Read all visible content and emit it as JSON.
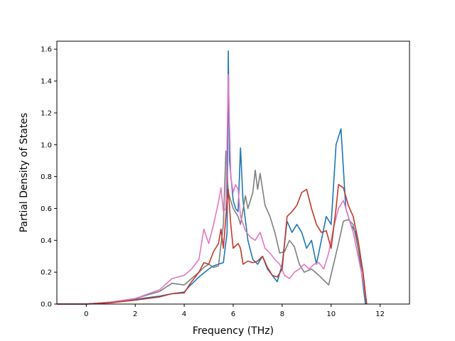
{
  "chart_data": {
    "type": "line",
    "title": "",
    "xlabel": "Frequency (THz)",
    "ylabel": "Partial Density of States",
    "xlim": [
      -1.2,
      13.2
    ],
    "ylim": [
      0.0,
      1.65
    ],
    "xticks": [
      0,
      2,
      4,
      6,
      8,
      10,
      12
    ],
    "xtick_labels": [
      "0",
      "2",
      "4",
      "6",
      "8",
      "10",
      "12"
    ],
    "yticks": [
      0.0,
      0.2,
      0.4,
      0.6,
      0.8,
      1.0,
      1.2,
      1.4,
      1.6
    ],
    "ytick_labels": [
      "0.0",
      "0.2",
      "0.4",
      "0.6",
      "0.8",
      "1.0",
      "1.2",
      "1.4",
      "1.6"
    ],
    "grid": false,
    "legend": false,
    "series": [
      {
        "color": "#1f77b4",
        "points": [
          [
            -1.2,
            0
          ],
          [
            0,
            0
          ],
          [
            1,
            0.012
          ],
          [
            2,
            0.03
          ],
          [
            3,
            0.05
          ],
          [
            3.5,
            0.065
          ],
          [
            4,
            0.075
          ],
          [
            4.2,
            0.11
          ],
          [
            4.6,
            0.17
          ],
          [
            5,
            0.22
          ],
          [
            5.2,
            0.24
          ],
          [
            5.4,
            0.25
          ],
          [
            5.6,
            0.26
          ],
          [
            5.75,
            0.45
          ],
          [
            5.8,
            1.59
          ],
          [
            5.85,
            0.9
          ],
          [
            6,
            0.65
          ],
          [
            6.1,
            0.6
          ],
          [
            6.2,
            0.58
          ],
          [
            6.3,
            0.98
          ],
          [
            6.4,
            0.65
          ],
          [
            6.6,
            0.4
          ],
          [
            6.8,
            0.28
          ],
          [
            7,
            0.25
          ],
          [
            7.2,
            0.3
          ],
          [
            7.4,
            0.22
          ],
          [
            7.6,
            0.18
          ],
          [
            7.8,
            0.14
          ],
          [
            8,
            0.25
          ],
          [
            8.2,
            0.52
          ],
          [
            8.4,
            0.45
          ],
          [
            8.6,
            0.5
          ],
          [
            8.8,
            0.45
          ],
          [
            9,
            0.35
          ],
          [
            9.2,
            0.4
          ],
          [
            9.4,
            0.25
          ],
          [
            9.6,
            0.4
          ],
          [
            9.8,
            0.55
          ],
          [
            10,
            0.5
          ],
          [
            10.2,
            1
          ],
          [
            10.4,
            1.1
          ],
          [
            10.6,
            0.6
          ],
          [
            10.8,
            0.5
          ],
          [
            11,
            0.45
          ],
          [
            11.2,
            0.25
          ],
          [
            11.4,
            0
          ]
        ]
      },
      {
        "color": "#7f7f7f",
        "points": [
          [
            -1.2,
            0
          ],
          [
            0,
            0
          ],
          [
            1,
            0.012
          ],
          [
            2,
            0.035
          ],
          [
            3,
            0.08
          ],
          [
            3.5,
            0.13
          ],
          [
            4,
            0.12
          ],
          [
            4.3,
            0.16
          ],
          [
            4.6,
            0.2
          ],
          [
            4.8,
            0.23
          ],
          [
            5,
            0.25
          ],
          [
            5.2,
            0.23
          ],
          [
            5.4,
            0.24
          ],
          [
            5.6,
            0.5
          ],
          [
            5.7,
            0.96
          ],
          [
            5.8,
            0.7
          ],
          [
            6,
            0.6
          ],
          [
            6.2,
            0.55
          ],
          [
            6.3,
            0.5
          ],
          [
            6.5,
            0.68
          ],
          [
            6.6,
            0.6
          ],
          [
            6.8,
            0.7
          ],
          [
            6.9,
            0.84
          ],
          [
            7,
            0.72
          ],
          [
            7.1,
            0.82
          ],
          [
            7.3,
            0.62
          ],
          [
            7.5,
            0.55
          ],
          [
            7.7,
            0.45
          ],
          [
            7.9,
            0.32
          ],
          [
            8.1,
            0.33
          ],
          [
            8.3,
            0.4
          ],
          [
            8.5,
            0.36
          ],
          [
            8.7,
            0.25
          ],
          [
            8.9,
            0.2
          ],
          [
            9.2,
            0.22
          ],
          [
            9.5,
            0.18
          ],
          [
            9.7,
            0.15
          ],
          [
            9.9,
            0.12
          ],
          [
            10.1,
            0.25
          ],
          [
            10.3,
            0.38
          ],
          [
            10.5,
            0.52
          ],
          [
            10.7,
            0.53
          ],
          [
            10.9,
            0.5
          ],
          [
            11.1,
            0.35
          ],
          [
            11.3,
            0.2
          ],
          [
            11.45,
            0
          ]
        ]
      },
      {
        "color": "#e377c2",
        "points": [
          [
            -1.2,
            0
          ],
          [
            0,
            0
          ],
          [
            1,
            0.012
          ],
          [
            2,
            0.035
          ],
          [
            3,
            0.09
          ],
          [
            3.5,
            0.16
          ],
          [
            4,
            0.18
          ],
          [
            4.3,
            0.22
          ],
          [
            4.6,
            0.28
          ],
          [
            4.8,
            0.47
          ],
          [
            5,
            0.38
          ],
          [
            5.2,
            0.5
          ],
          [
            5.4,
            0.64
          ],
          [
            5.5,
            0.73
          ],
          [
            5.6,
            0.58
          ],
          [
            5.7,
            0.6
          ],
          [
            5.8,
            1.44
          ],
          [
            5.9,
            0.8
          ],
          [
            6,
            0.7
          ],
          [
            6.1,
            0.75
          ],
          [
            6.2,
            0.72
          ],
          [
            6.3,
            0.55
          ],
          [
            6.5,
            0.46
          ],
          [
            6.7,
            0.42
          ],
          [
            6.9,
            0.4
          ],
          [
            7.1,
            0.45
          ],
          [
            7.3,
            0.35
          ],
          [
            7.5,
            0.32
          ],
          [
            7.7,
            0.28
          ],
          [
            7.9,
            0.25
          ],
          [
            8.1,
            0.18
          ],
          [
            8.3,
            0.16
          ],
          [
            8.5,
            0.2
          ],
          [
            8.7,
            0.22
          ],
          [
            8.9,
            0.25
          ],
          [
            9.1,
            0.22
          ],
          [
            9.3,
            0.25
          ],
          [
            9.5,
            0.26
          ],
          [
            9.7,
            0.22
          ],
          [
            9.9,
            0.32
          ],
          [
            10.1,
            0.48
          ],
          [
            10.3,
            0.6
          ],
          [
            10.5,
            0.65
          ],
          [
            10.7,
            0.55
          ],
          [
            10.9,
            0.45
          ],
          [
            11.1,
            0.3
          ],
          [
            11.3,
            0.15
          ],
          [
            11.45,
            0
          ]
        ]
      },
      {
        "color": "#c0392b",
        "points": [
          [
            -1.2,
            0
          ],
          [
            0,
            0
          ],
          [
            1,
            0.008
          ],
          [
            2,
            0.025
          ],
          [
            3,
            0.045
          ],
          [
            3.5,
            0.065
          ],
          [
            4,
            0.07
          ],
          [
            4.3,
            0.14
          ],
          [
            4.6,
            0.2
          ],
          [
            4.8,
            0.26
          ],
          [
            5,
            0.25
          ],
          [
            5.2,
            0.33
          ],
          [
            5.4,
            0.38
          ],
          [
            5.5,
            0.47
          ],
          [
            5.6,
            0.35
          ],
          [
            5.7,
            0.55
          ],
          [
            5.8,
            0.72
          ],
          [
            5.9,
            0.5
          ],
          [
            6,
            0.35
          ],
          [
            6.2,
            0.38
          ],
          [
            6.3,
            0.35
          ],
          [
            6.4,
            0.25
          ],
          [
            6.6,
            0.27
          ],
          [
            6.8,
            0.26
          ],
          [
            7,
            0.27
          ],
          [
            7.2,
            0.3
          ],
          [
            7.4,
            0.23
          ],
          [
            7.6,
            0.18
          ],
          [
            7.8,
            0.17
          ],
          [
            8,
            0.22
          ],
          [
            8.2,
            0.55
          ],
          [
            8.4,
            0.58
          ],
          [
            8.6,
            0.62
          ],
          [
            8.8,
            0.7
          ],
          [
            9,
            0.72
          ],
          [
            9.2,
            0.6
          ],
          [
            9.4,
            0.5
          ],
          [
            9.6,
            0.45
          ],
          [
            9.8,
            0.46
          ],
          [
            10,
            0.35
          ],
          [
            10.2,
            0.6
          ],
          [
            10.3,
            0.75
          ],
          [
            10.5,
            0.73
          ],
          [
            10.7,
            0.62
          ],
          [
            10.9,
            0.55
          ],
          [
            11.1,
            0.4
          ],
          [
            11.3,
            0.2
          ],
          [
            11.45,
            0
          ]
        ]
      }
    ]
  }
}
